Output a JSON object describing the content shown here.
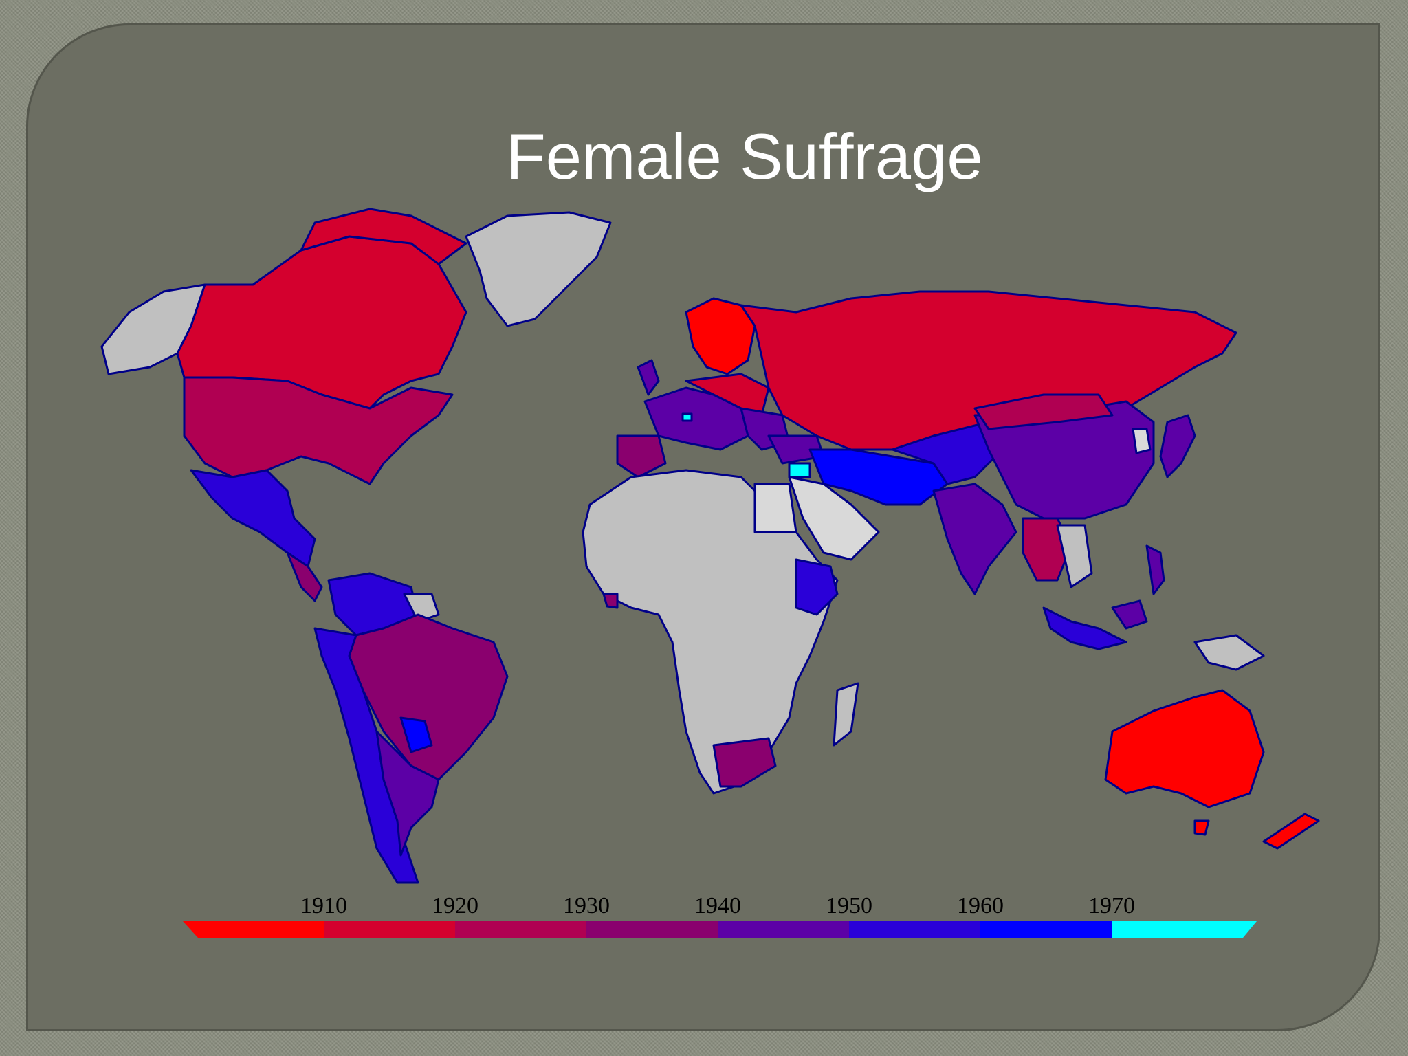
{
  "slide": {
    "title": "Female Suffrage"
  },
  "legend": {
    "ticks": [
      "1910",
      "1920",
      "1930",
      "1940",
      "1950",
      "1960",
      "1970"
    ],
    "colors": [
      "#ff0000",
      "#d4002e",
      "#b00052",
      "#8a006e",
      "#5c00a6",
      "#2a00d8",
      "#0000ff",
      "#00ffff"
    ]
  },
  "map_colors": {
    "no_data": "#c0c0c0",
    "border": "#000088"
  }
}
